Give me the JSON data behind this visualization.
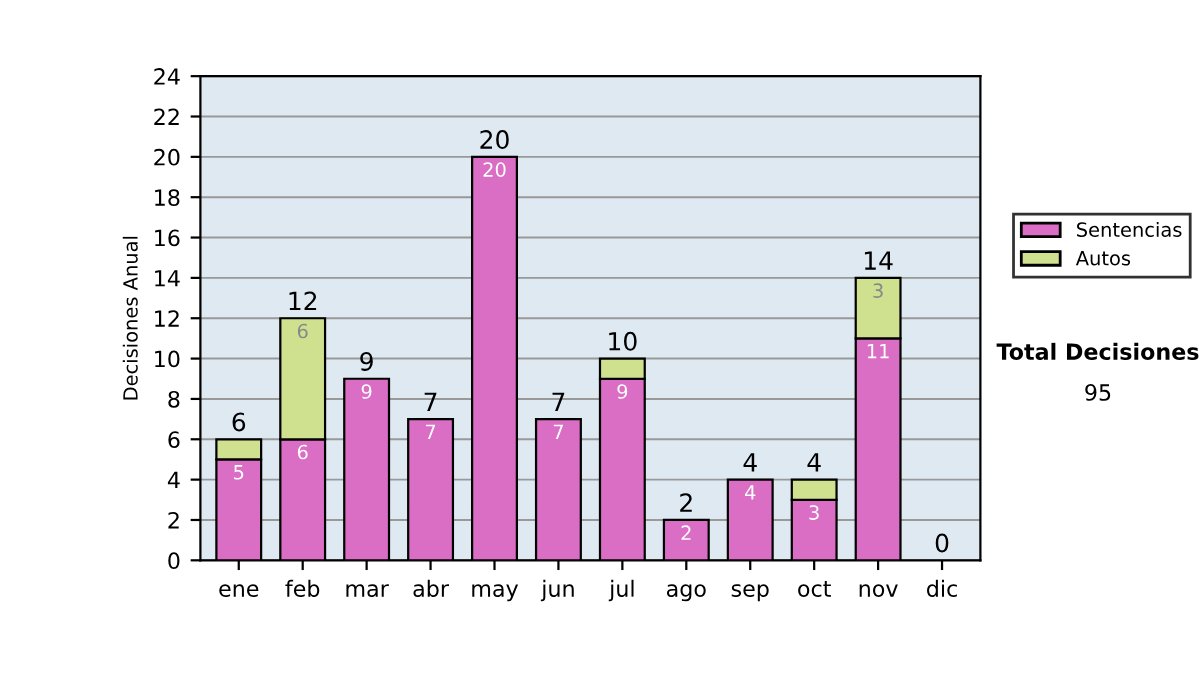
{
  "chart_data": {
    "type": "bar",
    "stacked": true,
    "ylabel": "Decisiones Anual",
    "categories": [
      "ene",
      "feb",
      "mar",
      "abr",
      "may",
      "jun",
      "jul",
      "ago",
      "sep",
      "oct",
      "nov",
      "dic"
    ],
    "series": [
      {
        "name": "Sentencias",
        "color": "#d96ec4",
        "values": [
          5,
          6,
          9,
          7,
          20,
          7,
          9,
          2,
          4,
          3,
          11,
          0
        ],
        "value_labels": [
          "5",
          "6",
          "9",
          "7",
          "20",
          "7",
          "9",
          "2",
          "4",
          "3",
          "11",
          null
        ]
      },
      {
        "name": "Autos",
        "color": "#cfe08f",
        "values": [
          1,
          6,
          0,
          0,
          0,
          0,
          1,
          0,
          0,
          1,
          3,
          0
        ],
        "value_labels": [
          null,
          "6",
          null,
          null,
          null,
          null,
          null,
          null,
          null,
          null,
          "3",
          null
        ]
      }
    ],
    "totals": [
      "6",
      "12",
      "9",
      "7",
      "20",
      "7",
      "10",
      "2",
      "4",
      "4",
      "14",
      "0"
    ],
    "ylim": [
      0,
      24
    ],
    "yticks": [
      0,
      2,
      4,
      6,
      8,
      10,
      12,
      14,
      16,
      18,
      20,
      22,
      24
    ],
    "grid": "y",
    "legend": "right",
    "annotations": [
      "Total Decisiones",
      "95"
    ]
  }
}
